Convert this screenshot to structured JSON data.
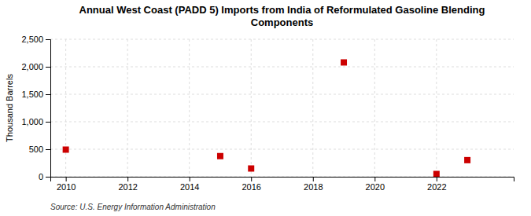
{
  "chart_data": {
    "type": "scatter",
    "title": "Annual West Coast (PADD 5) Imports from India of Reformulated Gasoline Blending\nComponents",
    "ylabel": "Thousand Barrels",
    "annotation": "Source: U.S. Energy Information Administration",
    "x": [
      2010,
      2015,
      2016,
      2019,
      2022,
      2023
    ],
    "values": [
      493,
      375,
      150,
      2079,
      50,
      302
    ],
    "color": "#cc0000",
    "marker": "square",
    "xlim": [
      2009.5,
      2024.5
    ],
    "ylim": [
      0,
      2500
    ],
    "xticks": [
      2010,
      2012,
      2014,
      2016,
      2018,
      2020,
      2022
    ],
    "yticks": [
      0,
      500,
      {
        "value": 1000,
        "label": "1,000"
      },
      {
        "value": 1500,
        "label": "1,500"
      },
      {
        "value": 2000,
        "label": "2,000"
      },
      {
        "value": 2500,
        "label": "2,500"
      }
    ],
    "grid": true
  }
}
